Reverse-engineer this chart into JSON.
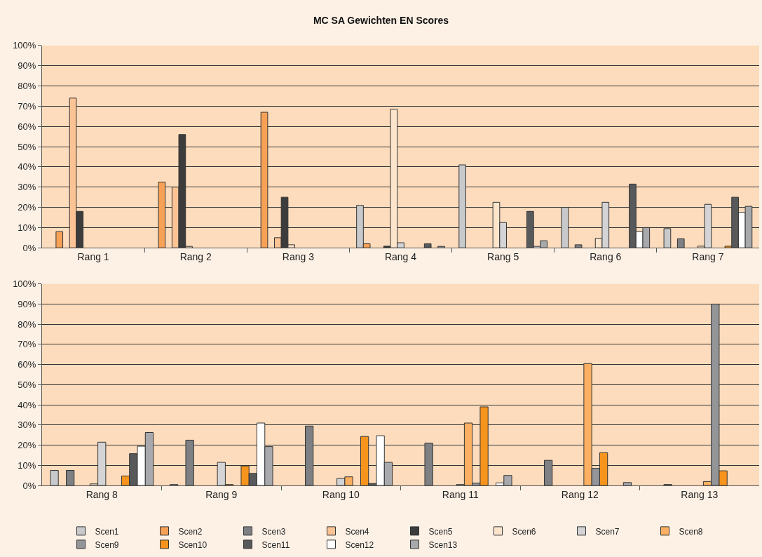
{
  "chart_data": [
    {
      "type": "bar",
      "title": "MC SA Gewichten EN Scores",
      "categories": [
        "Rang 1",
        "Rang 2",
        "Rang 3",
        "Rang 4",
        "Rang 5",
        "Rang 6",
        "Rang 7"
      ],
      "ylim": [
        0,
        100
      ],
      "yticks": [
        {
          "value": 0,
          "label": "0%"
        },
        {
          "value": 10,
          "label": "10%"
        },
        {
          "value": 20,
          "label": "20%"
        },
        {
          "value": 30,
          "label": "30%"
        },
        {
          "value": 40,
          "label": "40%"
        },
        {
          "value": 50,
          "label": "50%"
        },
        {
          "value": 60,
          "label": "60%"
        },
        {
          "value": 70,
          "label": "70%"
        },
        {
          "value": 80,
          "label": "80%"
        },
        {
          "value": 90,
          "label": "90%"
        },
        {
          "value": 100,
          "label": "100%"
        }
      ],
      "grid": "y",
      "series": [
        {
          "color": "#c8c9cb",
          "values": [
            null,
            null,
            null,
            21,
            41,
            20,
            9.5
          ]
        },
        {
          "color": "#f7a157",
          "values": [
            8,
            32.5,
            67,
            2,
            null,
            null,
            null
          ]
        },
        {
          "color": "#7f8083",
          "values": [
            null,
            null,
            null,
            null,
            null,
            1.5,
            4.5
          ]
        },
        {
          "color": "#fcc495",
          "values": [
            74,
            30,
            5,
            null,
            null,
            null,
            null
          ]
        },
        {
          "color": "#3c3c3c",
          "values": [
            18,
            56,
            25,
            0.8,
            null,
            null,
            null
          ]
        },
        {
          "color": "#fde5cc",
          "values": [
            null,
            0.7,
            1.5,
            68.5,
            22.5,
            4.7,
            0.8
          ]
        },
        {
          "color": "#d4d4d6",
          "values": [
            null,
            null,
            null,
            2.5,
            12.5,
            22.5,
            21.5
          ]
        },
        {
          "color": "#fdb062",
          "values": [
            null,
            null,
            null,
            null,
            null,
            null,
            null
          ]
        },
        {
          "color": "#939598",
          "values": [
            null,
            null,
            null,
            null,
            null,
            null,
            null
          ]
        },
        {
          "color": "#f7941d",
          "values": [
            null,
            null,
            null,
            null,
            null,
            null,
            0.8
          ]
        },
        {
          "color": "#58595b",
          "values": [
            null,
            null,
            null,
            2,
            18,
            31.5,
            25
          ]
        },
        {
          "color": "#ffffff",
          "values": [
            null,
            null,
            null,
            null,
            0.7,
            8,
            17.5
          ]
        },
        {
          "color": "#a7a9ac",
          "values": [
            null,
            null,
            null,
            0.7,
            3.5,
            10,
            20.5
          ]
        }
      ]
    },
    {
      "type": "bar",
      "categories": [
        "Rang 8",
        "Rang 9",
        "Rang 10",
        "Rang 11",
        "Rang 12",
        "Rang 13"
      ],
      "ylim": [
        0,
        100
      ],
      "yticks": [
        {
          "value": 0,
          "label": "0%"
        },
        {
          "value": 10,
          "label": "10%"
        },
        {
          "value": 20,
          "label": "20%"
        },
        {
          "value": 30,
          "label": "30%"
        },
        {
          "value": 40,
          "label": "40%"
        },
        {
          "value": 50,
          "label": "50%"
        },
        {
          "value": 60,
          "label": "60%"
        },
        {
          "value": 70,
          "label": "70%"
        },
        {
          "value": 80,
          "label": "80%"
        },
        {
          "value": 90,
          "label": "90%"
        },
        {
          "value": 100,
          "label": "100%"
        }
      ],
      "grid": "y",
      "legend": "bottom",
      "series": [
        {
          "name": "Scen1",
          "color": "#c8c9cb",
          "values": [
            7.5,
            0.5,
            null,
            null,
            null,
            null
          ]
        },
        {
          "name": "Scen2",
          "color": "#f7a157",
          "values": [
            null,
            null,
            null,
            null,
            null,
            null
          ]
        },
        {
          "name": "Scen3",
          "color": "#7f8083",
          "values": [
            7.5,
            22.5,
            29.5,
            21,
            12.5,
            0.5
          ]
        },
        {
          "name": "Scen4",
          "color": "#fcc495",
          "values": [
            null,
            null,
            null,
            null,
            null,
            null
          ]
        },
        {
          "name": "Scen5",
          "color": "#3c3c3c",
          "values": [
            null,
            null,
            null,
            null,
            null,
            null
          ]
        },
        {
          "name": "Scen6",
          "color": "#fde5cc",
          "values": [
            0.8,
            null,
            null,
            null,
            null,
            null
          ]
        },
        {
          "name": "Scen7",
          "color": "#d4d4d6",
          "values": [
            21.5,
            11.5,
            3.5,
            0.5,
            null,
            null
          ]
        },
        {
          "name": "Scen8",
          "color": "#fdb062",
          "values": [
            null,
            0.5,
            4.3,
            31,
            60.5,
            2
          ]
        },
        {
          "name": "Scen9",
          "color": "#939598",
          "values": [
            null,
            null,
            null,
            1.2,
            8.5,
            90
          ]
        },
        {
          "name": "Scen10",
          "color": "#f7941d",
          "values": [
            4.7,
            9.7,
            24.3,
            39,
            16.3,
            7.3
          ]
        },
        {
          "name": "Scen11",
          "color": "#58595b",
          "values": [
            15.8,
            6,
            1,
            null,
            null,
            null
          ]
        },
        {
          "name": "Scen12",
          "color": "#ffffff",
          "values": [
            19.5,
            31,
            24.7,
            1.3,
            null,
            null
          ]
        },
        {
          "name": "Scen13",
          "color": "#a7a9ac",
          "values": [
            26.3,
            19.3,
            11.5,
            5,
            1.5,
            null
          ]
        }
      ]
    }
  ]
}
